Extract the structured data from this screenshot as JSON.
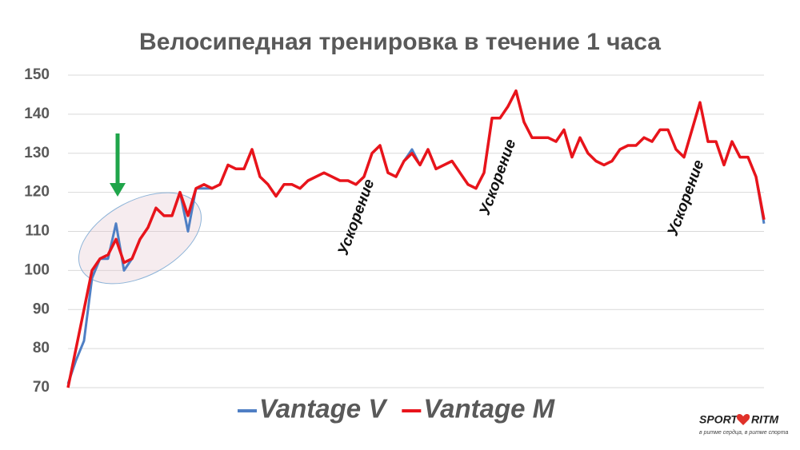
{
  "chart_data": {
    "type": "line",
    "title": "Велосипедная тренировка в течение 1 часа",
    "categories": [
      null,
      null,
      null,
      null,
      null,
      null,
      null,
      null,
      null,
      null,
      null,
      null,
      null,
      null,
      null,
      null,
      null,
      null,
      null,
      null,
      null,
      null,
      null,
      null,
      null,
      null,
      null,
      null,
      null,
      null,
      null,
      null,
      null,
      null,
      null,
      null,
      null,
      null,
      null,
      null,
      null,
      null,
      null,
      null,
      null,
      null,
      null,
      null,
      null,
      null,
      null,
      null,
      null,
      null,
      null,
      null,
      null,
      null,
      null,
      null,
      null,
      null,
      null,
      null,
      null,
      null,
      null,
      null,
      null,
      null,
      null,
      null,
      null,
      null,
      null,
      null,
      null,
      null,
      null,
      null,
      null,
      null,
      null,
      null,
      null,
      null,
      null,
      null
    ],
    "series": [
      {
        "name": "Vantage V",
        "color": "#4f7fc4",
        "values": [
          71,
          77,
          82,
          98,
          103,
          103,
          112,
          100,
          103,
          108,
          111,
          116,
          114,
          114,
          120,
          110,
          121,
          121,
          121,
          122,
          127,
          126,
          126,
          131,
          124,
          122,
          119,
          122,
          122,
          121,
          123,
          124,
          125,
          124,
          123,
          123,
          122,
          124,
          130,
          132,
          125,
          124,
          128,
          131,
          127,
          131,
          126,
          127,
          128,
          125,
          122,
          121,
          125,
          139,
          139,
          142,
          146,
          138,
          134,
          134,
          134,
          133,
          136,
          129,
          134,
          130,
          128,
          127,
          128,
          131,
          132,
          132,
          134,
          133,
          136,
          136,
          131,
          129,
          136,
          143,
          133,
          133,
          127,
          133,
          129,
          129,
          124,
          112
        ]
      },
      {
        "name": "Vantage M",
        "color": "#e8141b",
        "values": [
          70,
          80,
          90,
          100,
          103,
          104,
          108,
          102,
          103,
          108,
          111,
          116,
          114,
          114,
          120,
          114,
          121,
          122,
          121,
          122,
          127,
          126,
          126,
          131,
          124,
          122,
          119,
          122,
          122,
          121,
          123,
          124,
          125,
          124,
          123,
          123,
          122,
          124,
          130,
          132,
          125,
          124,
          128,
          130,
          127,
          131,
          126,
          127,
          128,
          125,
          122,
          121,
          125,
          139,
          139,
          142,
          146,
          138,
          134,
          134,
          134,
          133,
          136,
          129,
          134,
          130,
          128,
          127,
          128,
          131,
          132,
          132,
          134,
          133,
          136,
          136,
          131,
          129,
          136,
          143,
          133,
          133,
          127,
          133,
          129,
          129,
          124,
          113
        ]
      }
    ],
    "ylim": [
      70,
      150
    ],
    "yticks": [
      70,
      80,
      90,
      100,
      110,
      120,
      130,
      140,
      150
    ],
    "grid": true,
    "legend": "bottom",
    "annotations": [
      "Ускорение",
      "Ускорение",
      "Ускорение"
    ]
  },
  "logo": {
    "brand_left": "SPORT",
    "brand_right": "RITM",
    "tagline": "в ритме сердца, в ритме спорта"
  }
}
